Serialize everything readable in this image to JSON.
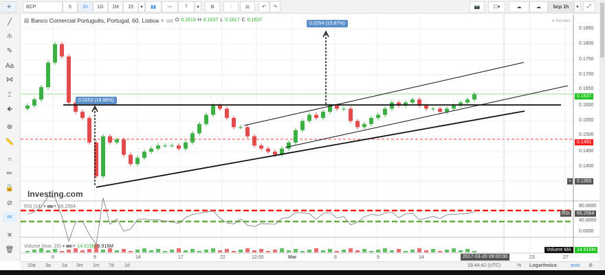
{
  "toolbar": {
    "symbol": "BCP",
    "intervals": [
      "5",
      "1h",
      "1D",
      "1M",
      "15"
    ],
    "active_interval": "1h",
    "layout_name": "bcp 1h",
    "icons": [
      "candles-icon",
      "line-chart-icon",
      "indicators-icon",
      "settings-icon",
      "compare-icon",
      "balance-icon",
      "undo-icon",
      "redo-icon",
      "camera-icon",
      "color-square-icon",
      "cloud-download-icon",
      "cloud-upload-icon",
      "fullscreen-icon"
    ]
  },
  "legend": {
    "title": "Banco Comercial Português, Portugal, 60, Lisboa",
    "o_label": "O",
    "o": "0.1619",
    "h_label": "H",
    "h": "0.1637",
    "l_label": "L",
    "l": "0.1617",
    "c_label": "C",
    "c": "0.1637",
    "status": "fechado"
  },
  "left_tools": [
    "crosshair-icon",
    "trend-line-icon",
    "pitchfork-icon",
    "brush-icon",
    "text-icon",
    "pattern-icon",
    "measure-icon",
    "arrow-icon",
    "zoom-icon",
    "ruler-icon",
    "magnet-icon",
    "stay-drawing-icon",
    "lock-icon",
    "hide-icon",
    "link-icon",
    "remove-drawings-icon",
    "trash-icon"
  ],
  "left_tool_text": {
    "text": "Aa"
  },
  "watermark": "Investing.com",
  "measure_labels": [
    "0.0253 (18.86%)",
    "0.0254 (15.87%)"
  ],
  "price_axis": {
    "ticks": [
      "0.1850",
      "0.1800",
      "0.1750",
      "0.1700",
      "0.1650",
      "0.1600",
      "0.1550",
      "0.1500",
      "0.1450",
      "0.1400"
    ],
    "last_price": "0.1637",
    "red_line": "0.1491",
    "crosshair": "0.1355",
    "colors": {
      "last": "#1fc41f",
      "red": "#ff1f1f"
    }
  },
  "rsi": {
    "label": "RSI (14)",
    "value": "65.2564",
    "tag": "RSI",
    "ticks": [
      "80.0000",
      "40.0000",
      "0.0000"
    ],
    "upper_level_color": "#ff1a1a",
    "lower_level_color": "#6aab3c"
  },
  "volume": {
    "label": "Volume (true, 20)",
    "value": "14.615M",
    "ma_value": "9.916M",
    "tag": "Volume MA",
    "axis_value": "14.615M"
  },
  "time_axis": {
    "ticks": [
      "6",
      "9",
      "14",
      "17",
      "22",
      "12:00",
      "Mar",
      "6",
      "9",
      "14",
      "23",
      "27"
    ],
    "crosshair": "2017-03-20 09:00:00"
  },
  "bottom": {
    "ranges": [
      "10a",
      "3a",
      "1a",
      "3m",
      "1m",
      "7d",
      "1d"
    ],
    "clock": "19:44:42",
    "tz": "(UTC)",
    "percent": "%",
    "log": "Logarítmica",
    "auto": "auto"
  },
  "chart_data": {
    "type": "candlestick",
    "ylim": [
      0.133,
      0.188
    ],
    "up_color": "#3cb043",
    "down_color": "#e24b4b",
    "closes": [
      0.16,
      0.162,
      0.166,
      0.174,
      0.18,
      0.176,
      0.161,
      0.158,
      0.156,
      0.148,
      0.137,
      0.15,
      0.148,
      0.149,
      0.144,
      0.141,
      0.143,
      0.145,
      0.146,
      0.147,
      0.147,
      0.147,
      0.146,
      0.148,
      0.151,
      0.154,
      0.157,
      0.16,
      0.159,
      0.156,
      0.153,
      0.153,
      0.15,
      0.147,
      0.146,
      0.145,
      0.144,
      0.146,
      0.148,
      0.152,
      0.155,
      0.157,
      0.156,
      0.158,
      0.16,
      0.159,
      0.159,
      0.155,
      0.153,
      0.154,
      0.156,
      0.157,
      0.159,
      0.161,
      0.16,
      0.161,
      0.162,
      0.16,
      0.159,
      0.159,
      0.158,
      0.159,
      0.16,
      0.161,
      0.162,
      0.1637
    ]
  }
}
